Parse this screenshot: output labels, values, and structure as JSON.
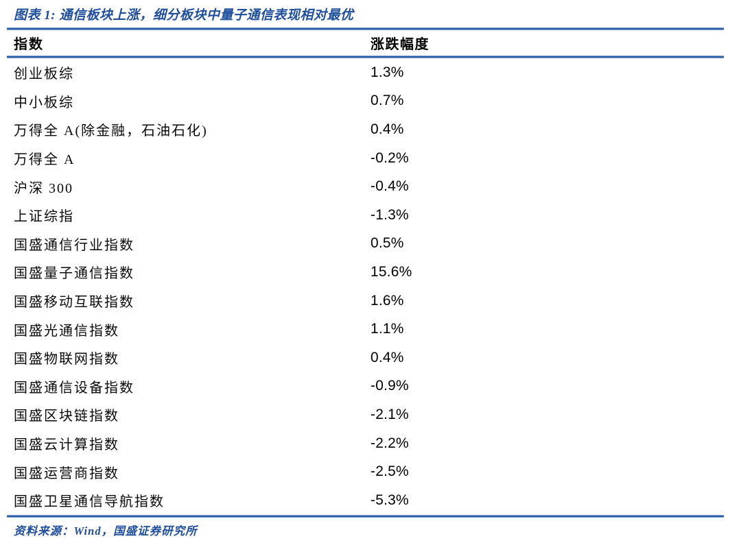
{
  "figure": {
    "title": "图表 1:  通信板块上涨，细分板块中量子通信表现相对最优",
    "source_label": "资料来源：Wind，国盛证券研究所"
  },
  "table": {
    "headers": {
      "index": "指数",
      "change": "涨跌幅度"
    },
    "rows": [
      {
        "name": "创业板综",
        "value": "1.3%"
      },
      {
        "name": "中小板综",
        "value": "0.7%"
      },
      {
        "name": "万得全 A(除金融，石油石化)",
        "value": "0.4%"
      },
      {
        "name": "万得全 A",
        "value": "-0.2%"
      },
      {
        "name": "沪深 300",
        "value": "-0.4%"
      },
      {
        "name": "上证综指",
        "value": "-1.3%"
      },
      {
        "name": "国盛通信行业指数",
        "value": "0.5%"
      },
      {
        "name": "国盛量子通信指数",
        "value": "15.6%"
      },
      {
        "name": "国盛移动互联指数",
        "value": "1.6%"
      },
      {
        "name": "国盛光通信指数",
        "value": "1.1%"
      },
      {
        "name": "国盛物联网指数",
        "value": "0.4%"
      },
      {
        "name": "国盛通信设备指数",
        "value": "-0.9%"
      },
      {
        "name": "国盛区块链指数",
        "value": "-2.1%"
      },
      {
        "name": "国盛云计算指数",
        "value": "-2.2%"
      },
      {
        "name": "国盛运营商指数",
        "value": "-2.5%"
      },
      {
        "name": "国盛卫星通信导航指数",
        "value": "-5.3%"
      }
    ]
  },
  "chart_data": {
    "type": "table",
    "title": "图表 1: 通信板块上涨，细分板块中量子通信表现相对最优",
    "columns": [
      "指数",
      "涨跌幅度"
    ],
    "categories": [
      "创业板综",
      "中小板综",
      "万得全 A(除金融，石油石化)",
      "万得全 A",
      "沪深 300",
      "上证综指",
      "国盛通信行业指数",
      "国盛量子通信指数",
      "国盛移动互联指数",
      "国盛光通信指数",
      "国盛物联网指数",
      "国盛通信设备指数",
      "国盛区块链指数",
      "国盛云计算指数",
      "国盛运营商指数",
      "国盛卫星通信导航指数"
    ],
    "values_pct": [
      1.3,
      0.7,
      0.4,
      -0.2,
      -0.4,
      -1.3,
      0.5,
      15.6,
      1.6,
      1.1,
      0.4,
      -0.9,
      -2.1,
      -2.2,
      -2.5,
      -5.3
    ]
  },
  "colors": {
    "accent_blue": "#1e4e9d",
    "rule_blue": "#2d5ea8",
    "rule_halo_blue": "#a9c0e0",
    "text_black": "#000000"
  }
}
